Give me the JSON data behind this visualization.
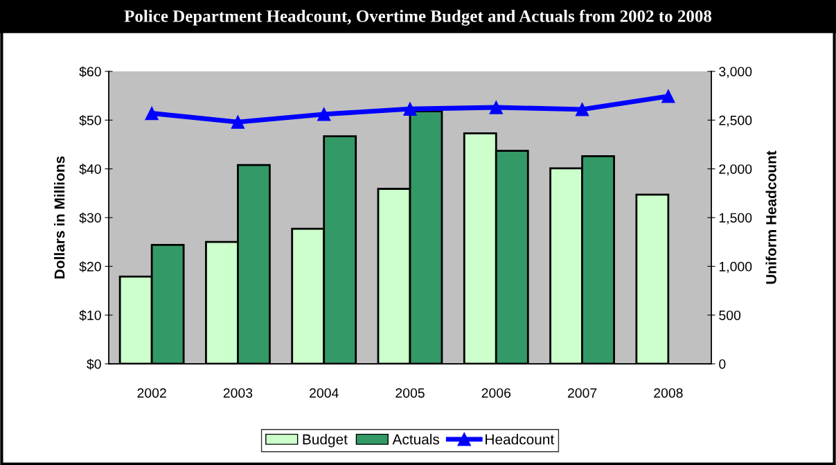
{
  "chart_data": {
    "type": "bar",
    "title": "Police Department Headcount, Overtime Budget and Actuals from 2002 to 2008",
    "categories": [
      "2002",
      "2003",
      "2004",
      "2005",
      "2006",
      "2007",
      "2008"
    ],
    "series": [
      {
        "name": "Budget",
        "color": "#ccffcc",
        "values": [
          17.9,
          25.0,
          27.7,
          35.9,
          47.3,
          40.1,
          34.7
        ]
      },
      {
        "name": "Actuals",
        "color": "#339966",
        "values": [
          24.4,
          40.8,
          46.7,
          51.8,
          43.7,
          42.6,
          null
        ]
      },
      {
        "name": "Headcount",
        "type": "line",
        "axis": "y2",
        "color": "#0000ff",
        "marker": "triangle",
        "values": [
          2570,
          2480,
          2560,
          2615,
          2630,
          2610,
          2745
        ]
      }
    ],
    "ylabel": "Dollars in Millions",
    "y2label": "Uniform Headcount",
    "ylim": [
      0,
      60
    ],
    "yticks": [
      {
        "value": 0,
        "label": "$0"
      },
      {
        "value": 10,
        "label": "$10"
      },
      {
        "value": 20,
        "label": "$20"
      },
      {
        "value": 30,
        "label": "$30"
      },
      {
        "value": 40,
        "label": "$40"
      },
      {
        "value": 50,
        "label": "$50"
      },
      {
        "value": 60,
        "label": "$60"
      }
    ],
    "y2lim": [
      0,
      3000
    ],
    "y2ticks": [
      {
        "value": 0,
        "label": "0"
      },
      {
        "value": 500,
        "label": "500"
      },
      {
        "value": 1000,
        "label": "1,000"
      },
      {
        "value": 1500,
        "label": "1,500"
      },
      {
        "value": 2000,
        "label": "2,000"
      },
      {
        "value": 2500,
        "label": "2,500"
      },
      {
        "value": 3000,
        "label": "3,000"
      }
    ],
    "grid": false,
    "legend": "bottom"
  }
}
